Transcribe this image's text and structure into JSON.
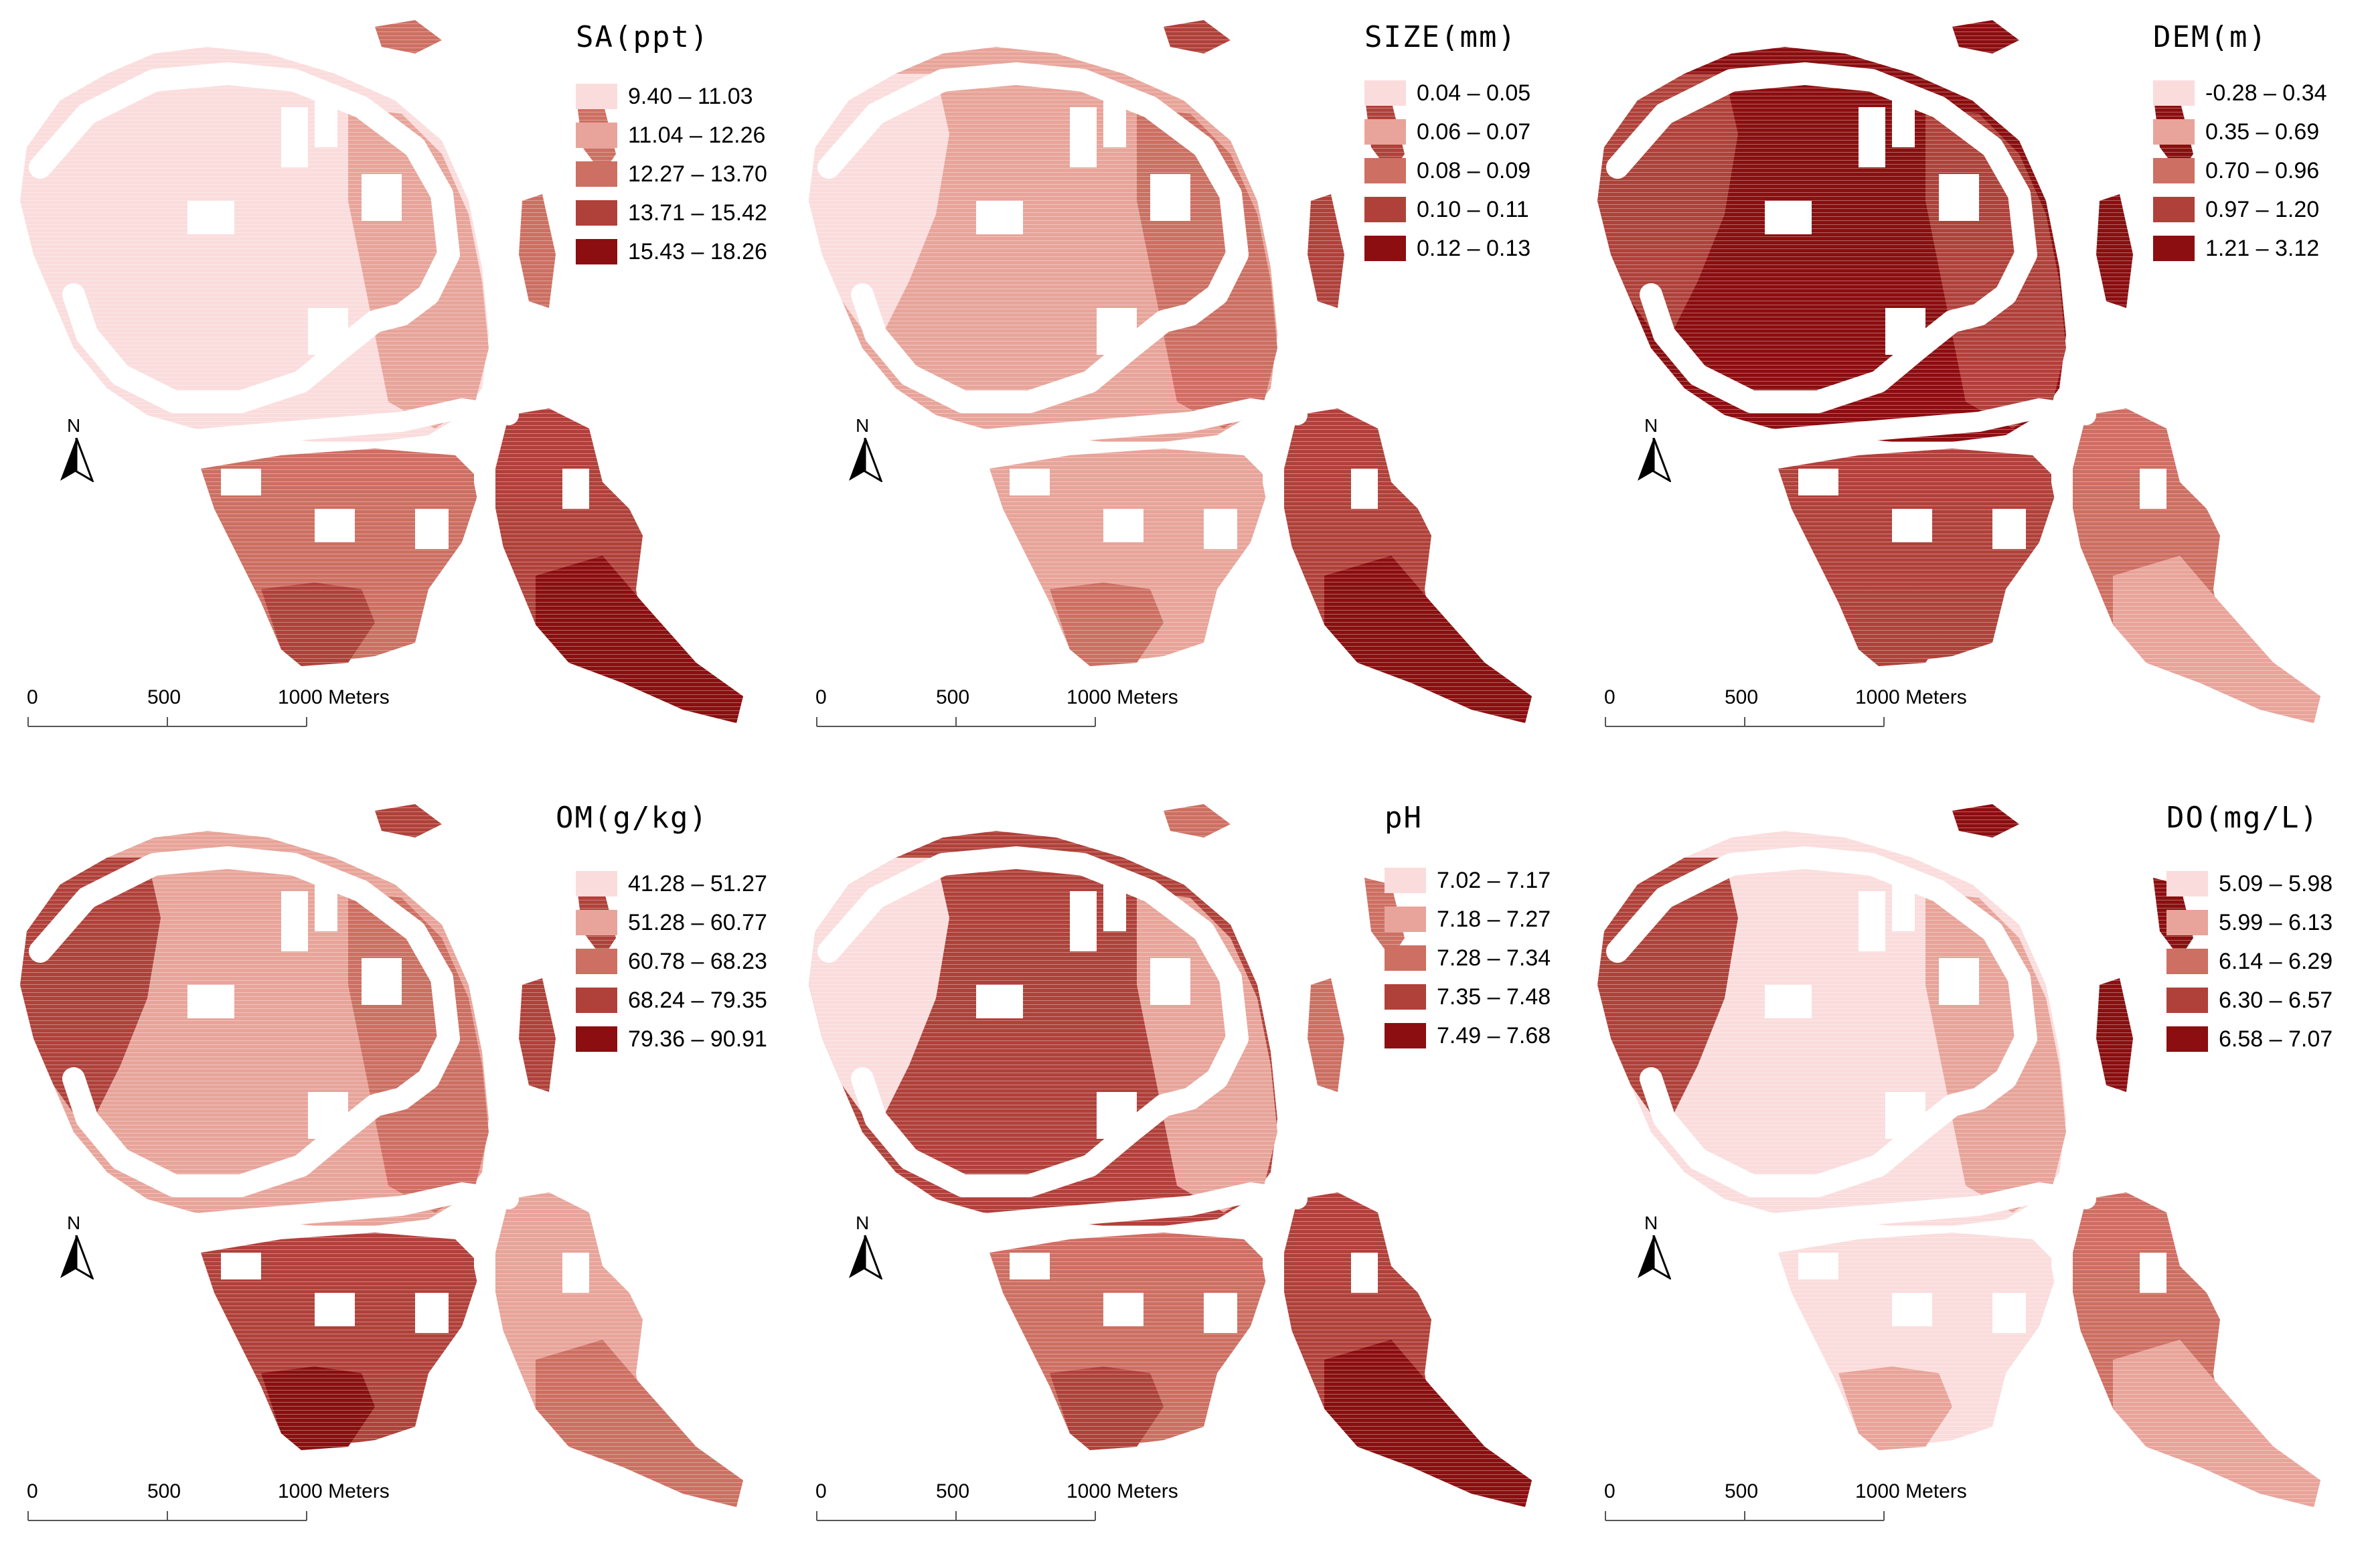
{
  "figure": {
    "panels": [
      {
        "id": "sa",
        "title": "SA(ppt)",
        "legend": [
          {
            "label": "9.40 – 11.03",
            "color": "#fbdcdc"
          },
          {
            "label": "11.04 – 12.26",
            "color": "#e8a49a"
          },
          {
            "label": "12.27 – 13.70",
            "color": "#cd6f62"
          },
          {
            "label": "13.71 – 15.42",
            "color": "#b0413a"
          },
          {
            "label": "15.43 – 18.26",
            "color": "#8c0e10"
          }
        ]
      },
      {
        "id": "size",
        "title": "SIZE(mm)",
        "legend": [
          {
            "label": "0.04 – 0.05",
            "color": "#fbdcdc"
          },
          {
            "label": "0.06 – 0.07",
            "color": "#e8a49a"
          },
          {
            "label": "0.08 – 0.09",
            "color": "#cd6f62"
          },
          {
            "label": "0.10 – 0.11",
            "color": "#b0413a"
          },
          {
            "label": "0.12 – 0.13",
            "color": "#8c0e10"
          }
        ]
      },
      {
        "id": "dem",
        "title": "DEM(m)",
        "legend": [
          {
            "label": "-0.28 – 0.34",
            "color": "#fbdcdc"
          },
          {
            "label": "0.35 – 0.69",
            "color": "#e8a49a"
          },
          {
            "label": "0.70 – 0.96",
            "color": "#cd6f62"
          },
          {
            "label": "0.97 – 1.20",
            "color": "#b0413a"
          },
          {
            "label": "1.21 – 3.12",
            "color": "#8c0e10"
          }
        ]
      },
      {
        "id": "om",
        "title": "OM(g/kg)",
        "legend": [
          {
            "label": "41.28 – 51.27",
            "color": "#fbdcdc"
          },
          {
            "label": "51.28 – 60.77",
            "color": "#e8a49a"
          },
          {
            "label": "60.78 – 68.23",
            "color": "#cd6f62"
          },
          {
            "label": "68.24 – 79.35",
            "color": "#b0413a"
          },
          {
            "label": "79.36 – 90.91",
            "color": "#8c0e10"
          }
        ]
      },
      {
        "id": "ph",
        "title": "pH",
        "legend": [
          {
            "label": "7.02 – 7.17",
            "color": "#fbdcdc"
          },
          {
            "label": "7.18 – 7.27",
            "color": "#e8a49a"
          },
          {
            "label": "7.28 – 7.34",
            "color": "#cd6f62"
          },
          {
            "label": "7.35 – 7.48",
            "color": "#b0413a"
          },
          {
            "label": "7.49 – 7.68",
            "color": "#8c0e10"
          }
        ]
      },
      {
        "id": "do",
        "title": "DO(mg/L)",
        "legend": [
          {
            "label": "5.09 – 5.98",
            "color": "#fbdcdc"
          },
          {
            "label": "5.99 – 6.13",
            "color": "#e8a49a"
          },
          {
            "label": "6.14 – 6.29",
            "color": "#cd6f62"
          },
          {
            "label": "6.30 – 6.57",
            "color": "#b0413a"
          },
          {
            "label": "6.58 – 7.07",
            "color": "#8c0e10"
          }
        ]
      }
    ],
    "north_label": "N",
    "scale_labels": [
      "0",
      "500",
      "1000 Meters"
    ],
    "colors": {
      "c1": "#fbdcdc",
      "c2": "#e8a49a",
      "c3": "#cd6f62",
      "c4": "#b0413a",
      "c5": "#8c0e10",
      "scale": "#555555"
    }
  }
}
